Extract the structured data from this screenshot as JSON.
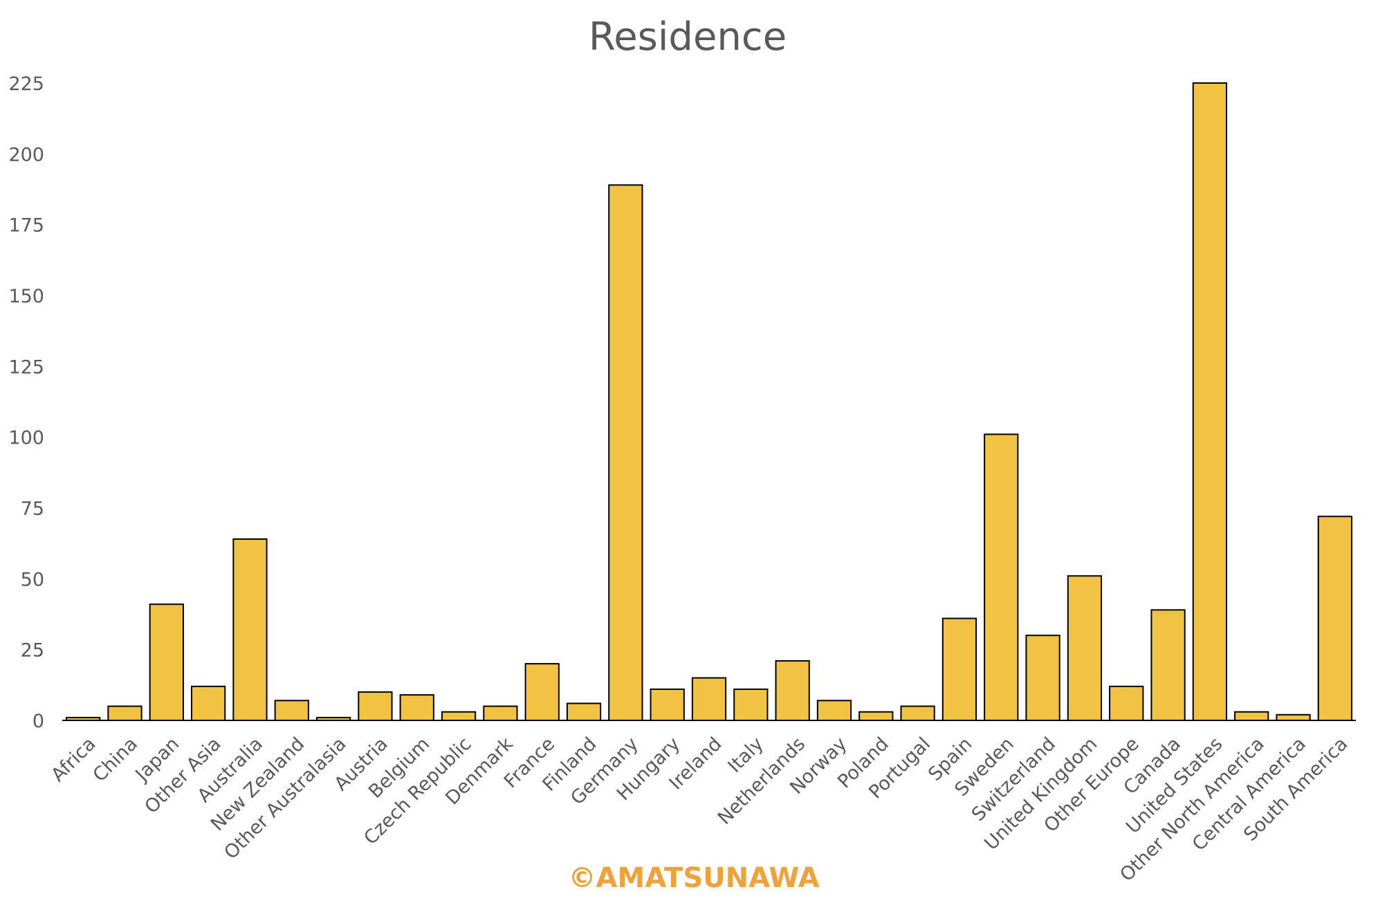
{
  "chart_data": {
    "type": "bar",
    "title": "Residence",
    "xlabel": "",
    "ylabel": "",
    "ylim": [
      0,
      225
    ],
    "yticks": [
      0,
      25,
      50,
      75,
      100,
      125,
      150,
      175,
      200,
      225
    ],
    "grid": false,
    "legend": "none",
    "categories": [
      "Africa",
      "China",
      "Japan",
      "Other Asia",
      "Australia",
      "New Zealand",
      "Other Australasia",
      "Austria",
      "Belgium",
      "Czech Republic",
      "Denmark",
      "France",
      "Finland",
      "Germany",
      "Hungary",
      "Ireland",
      "Italy",
      "Netherlands",
      "Norway",
      "Poland",
      "Portugal",
      "Spain",
      "Sweden",
      "Switzerland",
      "United Kingdom",
      "Other Europe",
      "Canada",
      "United States",
      "Other North America",
      "Central America",
      "South America"
    ],
    "values": [
      1,
      5,
      41,
      12,
      64,
      7,
      1,
      10,
      9,
      3,
      5,
      20,
      6,
      189,
      11,
      15,
      11,
      21,
      7,
      3,
      5,
      36,
      101,
      30,
      51,
      12,
      39,
      225,
      3,
      2,
      72
    ],
    "bar_color": "#F2C343",
    "bar_edge_color": "#000000"
  },
  "watermark": {
    "text": "©AMATSUNAWA",
    "color": "#F0A23A"
  }
}
